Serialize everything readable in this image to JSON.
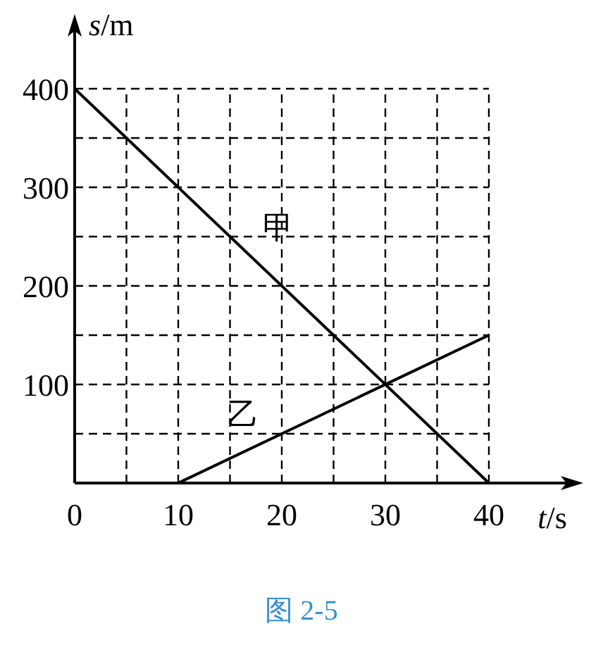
{
  "chart_data": {
    "type": "line",
    "xlabel": "*t*/s",
    "ylabel": "*s*/m",
    "series": [
      {
        "name": "甲",
        "color": "#000000",
        "x": [
          0,
          40
        ],
        "values": [
          400,
          0
        ]
      },
      {
        "name": "乙",
        "color": "#000000",
        "x": [
          10,
          40
        ],
        "values": [
          0,
          150
        ]
      }
    ],
    "xlim": [
      0,
      40
    ],
    "ylim": [
      0,
      400
    ],
    "xticks": [
      0,
      {
        "value": 5,
        "label": null
      },
      10,
      {
        "value": 15,
        "label": null
      },
      20,
      {
        "value": 25,
        "label": null
      },
      30,
      {
        "value": 35,
        "label": null
      },
      40
    ],
    "yticks": [
      {
        "value": 0,
        "label": null
      },
      {
        "value": 50,
        "label": null
      },
      100,
      {
        "value": 150,
        "label": null
      },
      200,
      {
        "value": 250,
        "label": null
      },
      300,
      {
        "value": 350,
        "label": null
      },
      400
    ],
    "grid": true,
    "line_style": "solid",
    "annotations": [
      "图 2-5"
    ]
  }
}
